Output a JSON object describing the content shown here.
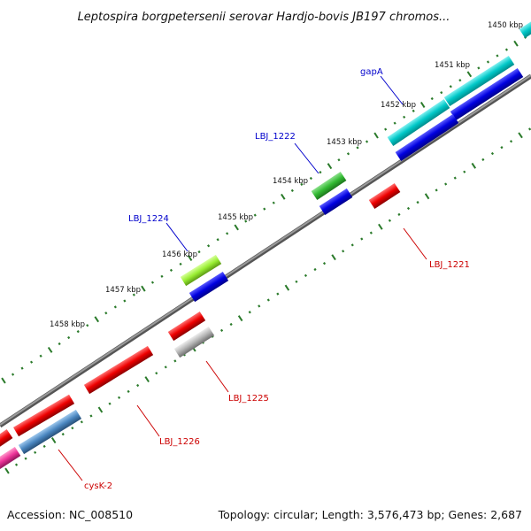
{
  "title": "Leptospira borgpetersenii serovar Hardjo-bovis JB197 chromos...",
  "footer": {
    "accession": "Accession: NC_008510",
    "summary": "Topology: circular; Length: 3,576,473 bp; Genes: 2,687"
  },
  "ticks": [
    "1450 kbp",
    "1451 kbp",
    "1452 kbp",
    "1453 kbp",
    "1454 kbp",
    "1455 kbp",
    "1456 kbp",
    "1457 kbp",
    "1458 kbp"
  ],
  "gene_labels": [
    {
      "text": "gapA",
      "color": "#0000cc"
    },
    {
      "text": "LBJ_1222",
      "color": "#0000cc"
    },
    {
      "text": "LBJ_1224",
      "color": "#0000cc"
    },
    {
      "text": "LBJ_1221",
      "color": "#cc0000"
    },
    {
      "text": "LBJ_1225",
      "color": "#cc0000"
    },
    {
      "text": "LBJ_1226",
      "color": "#cc0000"
    },
    {
      "text": "cysK-2",
      "color": "#cc0000"
    }
  ],
  "colors": {
    "cyan": "#00c8c8",
    "blue": "#0000e0",
    "green": "#33bb33",
    "light_green": "#99ee33",
    "red": "#ee0000",
    "gray": "#b4b4b4",
    "steel_blue": "#4a86c0",
    "magenta": "#ee3399",
    "backbone": "#808080",
    "tick_green": "#2a7a2a"
  }
}
